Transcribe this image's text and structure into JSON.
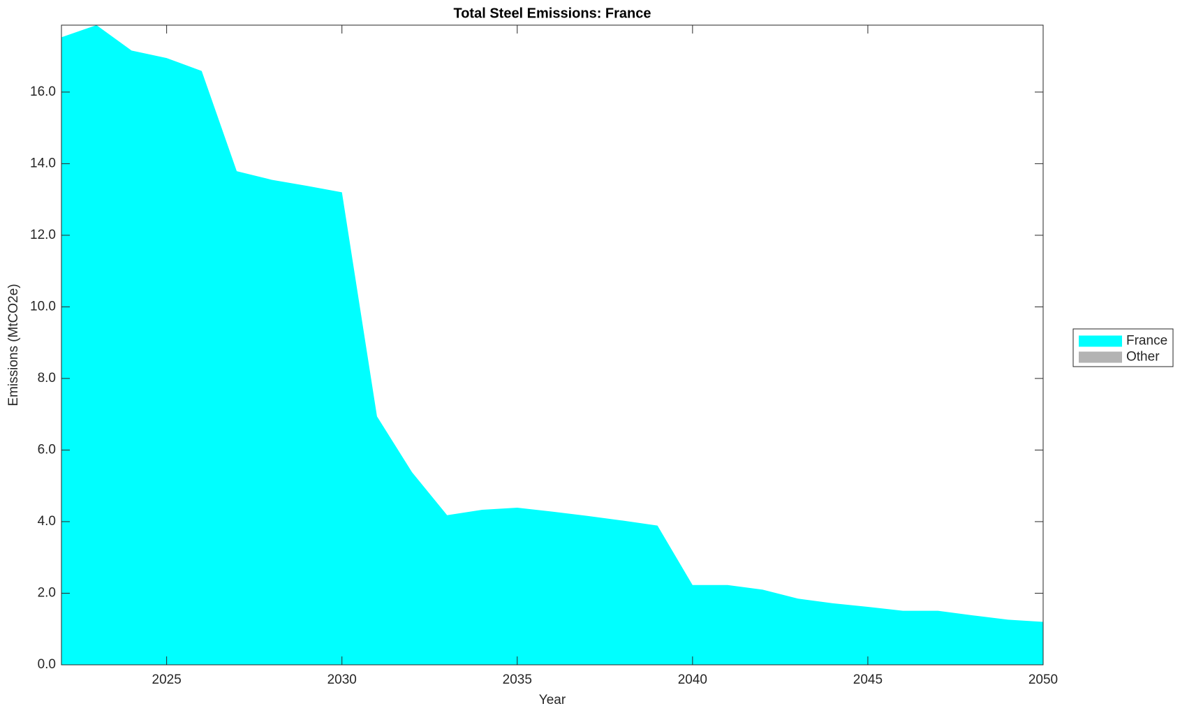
{
  "chart_data": {
    "type": "area",
    "title": "Total Steel Emissions: France",
    "x_label": "Year",
    "y_label": "Emissions (MtCO2e)",
    "x": [
      2022,
      2023,
      2024,
      2025,
      2026,
      2027,
      2028,
      2029,
      2030,
      2031,
      2032,
      2033,
      2034,
      2035,
      2036,
      2037,
      2038,
      2039,
      2040,
      2041,
      2042,
      2043,
      2044,
      2045,
      2046,
      2047,
      2048,
      2049,
      2050
    ],
    "series": [
      {
        "name": "France",
        "color": "#00ffff",
        "values": [
          17.53,
          17.87,
          17.16,
          16.95,
          16.59,
          13.79,
          13.55,
          13.38,
          13.2,
          6.94,
          5.38,
          4.18,
          4.33,
          4.39,
          4.28,
          4.16,
          4.03,
          3.89,
          2.23,
          2.23,
          2.1,
          1.85,
          1.72,
          1.62,
          1.51,
          1.51,
          1.38,
          1.26,
          1.2
        ]
      },
      {
        "name": "Other",
        "color": "#b3b3b3",
        "values": [
          0,
          0,
          0,
          0,
          0,
          0,
          0,
          0,
          0,
          0,
          0,
          0,
          0,
          0,
          0,
          0,
          0,
          0,
          0,
          0,
          0,
          0,
          0,
          0,
          0,
          0,
          0,
          0,
          0
        ]
      }
    ],
    "xlim": [
      2022,
      2050
    ],
    "xticks": [
      2025,
      2030,
      2035,
      2040,
      2045,
      2050
    ],
    "ylim": [
      0,
      17.87
    ],
    "yticks": [
      {
        "value": 0,
        "label": "0.0"
      },
      {
        "value": 2,
        "label": "2.0"
      },
      {
        "value": 4,
        "label": "4.0"
      },
      {
        "value": 6,
        "label": "6.0"
      },
      {
        "value": 8,
        "label": "8.0"
      },
      {
        "value": 10,
        "label": "10.0"
      },
      {
        "value": 12,
        "label": "12.0"
      },
      {
        "value": 14,
        "label": "14.0"
      },
      {
        "value": 16,
        "label": "16.0"
      }
    ],
    "stacked": true,
    "legend": "outside-right"
  }
}
